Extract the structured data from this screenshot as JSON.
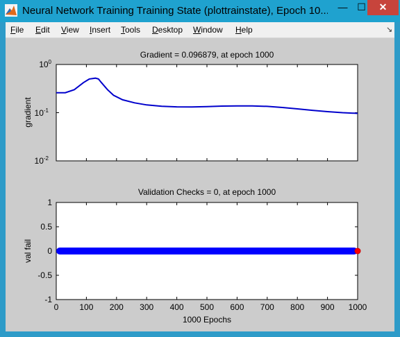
{
  "window": {
    "title": "Neural Network Training Training State (plottrainstate), Epoch 10...",
    "minimize_label": "—",
    "maximize_label": "☐",
    "close_label": "✕"
  },
  "menu": {
    "items": [
      {
        "first": "F",
        "rest": "ile"
      },
      {
        "first": "E",
        "rest": "dit"
      },
      {
        "first": "V",
        "rest": "iew"
      },
      {
        "first": "I",
        "rest": "nsert"
      },
      {
        "first": "T",
        "rest": "ools"
      },
      {
        "first": "D",
        "rest": "esktop"
      },
      {
        "first": "W",
        "rest": "indow"
      },
      {
        "first": "H",
        "rest": "elp"
      }
    ],
    "dock_icon": "↘"
  },
  "chart_data": [
    {
      "type": "line",
      "title": "Gradient = 0.096879, at epoch 1000",
      "ylabel": "gradient",
      "yscale": "log",
      "ylim": [
        0.01,
        1
      ],
      "xlim": [
        0,
        1000
      ],
      "ytick_labels": [
        {
          "base": "10",
          "exp": "0"
        },
        {
          "base": "10",
          "exp": "-1"
        },
        {
          "base": "10",
          "exp": "-2"
        }
      ],
      "line_color": "#0000cc",
      "x": [
        0,
        30,
        60,
        90,
        110,
        130,
        140,
        150,
        170,
        190,
        220,
        260,
        300,
        350,
        400,
        450,
        500,
        550,
        600,
        650,
        700,
        750,
        800,
        850,
        900,
        950,
        1000
      ],
      "y": [
        0.26,
        0.26,
        0.3,
        0.42,
        0.5,
        0.52,
        0.5,
        0.42,
        0.3,
        0.23,
        0.185,
        0.16,
        0.145,
        0.136,
        0.132,
        0.131,
        0.134,
        0.137,
        0.138,
        0.138,
        0.135,
        0.128,
        0.12,
        0.112,
        0.105,
        0.1,
        0.096879
      ]
    },
    {
      "type": "line",
      "title": "Validation Checks = 0, at epoch 1000",
      "ylabel": "val fail",
      "xlabel": "1000 Epochs",
      "ylim": [
        -1,
        1
      ],
      "xlim": [
        0,
        1000
      ],
      "yticks": [
        1,
        0.5,
        0,
        -0.5,
        -1
      ],
      "ytick_labels": [
        "1",
        "0.5",
        "0",
        "-0.5",
        "-1"
      ],
      "xticks": [
        0,
        100,
        200,
        300,
        400,
        500,
        600,
        700,
        800,
        900,
        1000
      ],
      "xtick_labels": [
        "0",
        "100",
        "200",
        "300",
        "400",
        "500",
        "600",
        "700",
        "800",
        "900",
        "1000"
      ],
      "line_color": "#0000ff",
      "marker_end_color": "#ff0000",
      "x": [
        0,
        1000
      ],
      "y": [
        0,
        0
      ]
    }
  ]
}
